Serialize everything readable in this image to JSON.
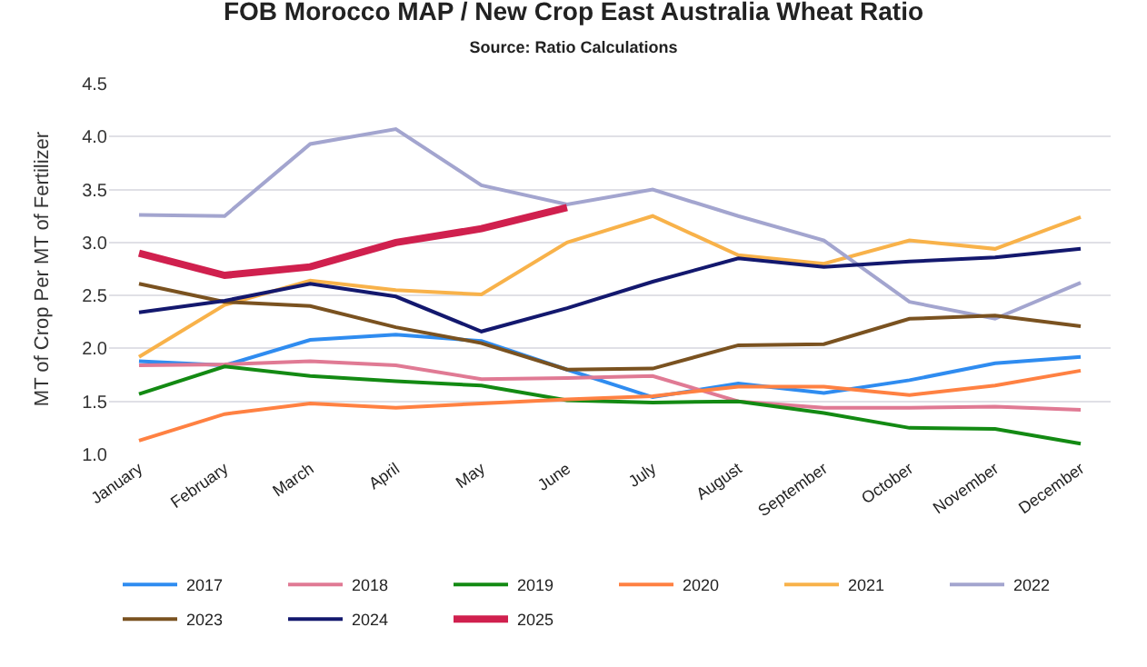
{
  "chart_data": {
    "type": "line",
    "title": "FOB Morocco MAP / New Crop East Australia Wheat Ratio",
    "subtitle": "Source: Ratio Calculations",
    "ylabel": "MT of Crop Per MT of Fertilizer",
    "categories": [
      "January",
      "February",
      "March",
      "April",
      "May",
      "June",
      "July",
      "August",
      "September",
      "October",
      "November",
      "December"
    ],
    "series": [
      {
        "name": "2017",
        "color": "#2f8cf0",
        "values": [
          1.88,
          1.84,
          2.08,
          2.13,
          2.07,
          1.8,
          1.54,
          1.67,
          1.58,
          1.7,
          1.86,
          1.92
        ]
      },
      {
        "name": "2018",
        "color": "#e07a94",
        "values": [
          1.84,
          1.85,
          1.88,
          1.84,
          1.71,
          1.72,
          1.74,
          1.5,
          1.44,
          1.44,
          1.45,
          1.42
        ]
      },
      {
        "name": "2019",
        "color": "#138a13",
        "values": [
          1.57,
          1.83,
          1.74,
          1.69,
          1.65,
          1.51,
          1.49,
          1.5,
          1.39,
          1.25,
          1.24,
          1.1
        ]
      },
      {
        "name": "2020",
        "color": "#ff8142",
        "values": [
          1.13,
          1.38,
          1.48,
          1.44,
          1.48,
          1.52,
          1.55,
          1.64,
          1.64,
          1.56,
          1.65,
          1.79
        ]
      },
      {
        "name": "2021",
        "color": "#f8b24a",
        "values": [
          1.92,
          2.41,
          2.64,
          2.55,
          2.51,
          3.0,
          3.25,
          2.88,
          2.8,
          3.02,
          2.94,
          3.24
        ]
      },
      {
        "name": "2022",
        "color": "#a3a5cf",
        "values": [
          3.26,
          3.25,
          3.93,
          4.07,
          3.54,
          3.36,
          3.5,
          3.25,
          3.02,
          2.44,
          2.28,
          2.62
        ]
      },
      {
        "name": "2023",
        "color": "#7a5220",
        "values": [
          2.61,
          2.44,
          2.4,
          2.2,
          2.05,
          1.8,
          1.81,
          2.03,
          2.04,
          2.28,
          2.31,
          2.21
        ]
      },
      {
        "name": "2024",
        "color": "#13186e",
        "values": [
          2.34,
          2.45,
          2.61,
          2.49,
          2.16,
          2.38,
          2.63,
          2.85,
          2.77,
          2.82,
          2.86,
          2.94
        ]
      },
      {
        "name": "2025",
        "color": "#d0204e",
        "values": [
          2.9,
          2.69,
          2.77,
          3.0,
          3.13,
          3.33,
          null,
          null,
          null,
          null,
          null,
          null
        ]
      }
    ],
    "ylim": [
      1.0,
      4.5
    ],
    "yticks": [
      {
        "value": 1.0,
        "label": "1.0"
      },
      {
        "value": 1.5,
        "label": "1.5"
      },
      {
        "value": 2.0,
        "label": "2.0"
      },
      {
        "value": 2.5,
        "label": "2.5"
      },
      {
        "value": 3.0,
        "label": "3.0"
      },
      {
        "value": 3.5,
        "label": "3.5"
      },
      {
        "value": 4.0,
        "label": "4.0"
      },
      {
        "value": 4.5,
        "label": "4.5"
      }
    ],
    "grid": "y",
    "legend": "bottom",
    "marker": "none",
    "line_style": "solid"
  }
}
